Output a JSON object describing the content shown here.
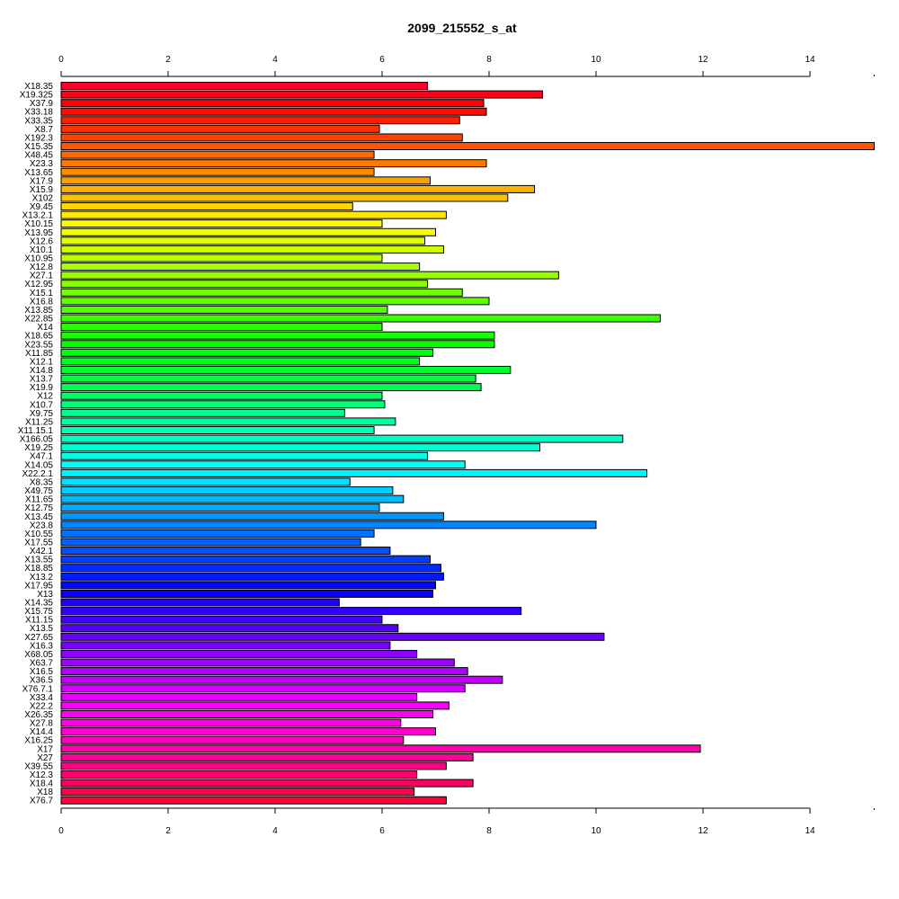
{
  "chart_data": {
    "type": "bar",
    "orientation": "horizontal",
    "title": "2099_215552_s_at",
    "xlabel": "",
    "ylabel": "",
    "xlim": [
      0,
      15.2
    ],
    "ticks": [
      0,
      2,
      4,
      6,
      8,
      10,
      12,
      14
    ],
    "tick_labels": [
      "0",
      "2",
      "4",
      "6",
      "8",
      "10",
      "12",
      "14"
    ],
    "axes": "top-and-bottom",
    "grid": false,
    "legend": "none",
    "color_scheme": "rainbow",
    "categories": [
      "X18.35",
      "X19.325",
      "X37.9",
      "X33.18",
      "X33.35",
      "X8.7",
      "X192.3",
      "X15.35",
      "X48.45",
      "X23.3",
      "X13.65",
      "X17.9",
      "X15.9",
      "X102",
      "X9.45",
      "X13.2.1",
      "X10.15",
      "X13.95",
      "X12.6",
      "X10.1",
      "X10.95",
      "X12.8",
      "X27.1",
      "X12.95",
      "X15.1",
      "X16.8",
      "X13.85",
      "X22.85",
      "X14",
      "X18.65",
      "X23.55",
      "X11.85",
      "X12.1",
      "X14.8",
      "X13.7",
      "X19.9",
      "X12",
      "X10.7",
      "X9.75",
      "X11.25",
      "X11.15.1",
      "X166.05",
      "X19.25",
      "X47.1",
      "X14.05",
      "X22.2.1",
      "X8.35",
      "X49.75",
      "X11.65",
      "X12.75",
      "X13.45",
      "X23.8",
      "X10.55",
      "X17.55",
      "X42.1",
      "X13.55",
      "X18.85",
      "X13.2",
      "X17.95",
      "X13",
      "X14.35",
      "X15.75",
      "X11.15",
      "X13.5",
      "X27.65",
      "X16.3",
      "X68.05",
      "X63.7",
      "X16.5",
      "X36.5",
      "X76.7.1",
      "X33.4",
      "X22.2",
      "X26.35",
      "X27.8",
      "X14.4",
      "X16.25",
      "X17",
      "X27",
      "X39.55",
      "X12.3",
      "X18.4",
      "X18",
      "X76.7"
    ],
    "values": [
      6.85,
      9.0,
      7.9,
      7.95,
      7.45,
      5.95,
      7.5,
      15.2,
      5.85,
      7.95,
      5.85,
      6.9,
      8.85,
      8.35,
      5.45,
      7.2,
      6.0,
      7.0,
      6.8,
      7.15,
      6.0,
      6.7,
      9.3,
      6.85,
      7.5,
      8.0,
      6.1,
      11.2,
      6.0,
      8.1,
      8.1,
      6.95,
      6.7,
      8.4,
      7.75,
      7.85,
      6.0,
      6.05,
      5.3,
      6.25,
      5.85,
      10.5,
      8.95,
      6.85,
      7.55,
      10.95,
      5.4,
      6.2,
      6.4,
      5.95,
      7.15,
      10.0,
      5.85,
      5.6,
      6.15,
      6.9,
      7.1,
      7.15,
      7.0,
      6.95,
      5.2,
      8.6,
      6.0,
      6.3,
      10.15,
      6.15,
      6.65,
      7.35,
      7.6,
      8.25,
      7.55,
      6.65,
      7.25,
      6.95,
      6.35,
      7.0,
      6.4,
      11.95,
      7.7,
      7.2,
      6.65,
      7.7,
      6.6,
      7.2
    ]
  }
}
